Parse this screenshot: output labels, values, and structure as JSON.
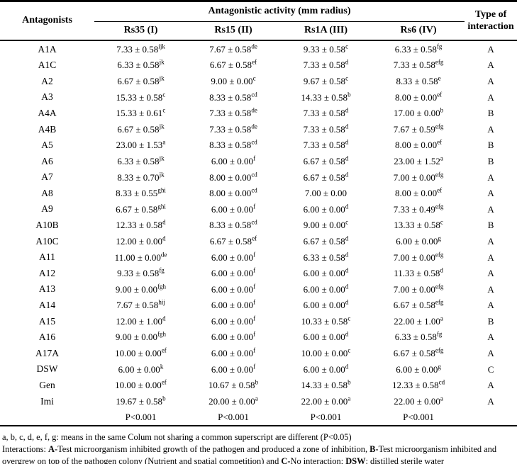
{
  "table": {
    "header": {
      "antagonists": "Antagonists",
      "group": "Antagonistic activity (mm radius)",
      "columns": [
        "Rs35 (I)",
        "Rs15 (II)",
        "Rs1A (III)",
        "Rs6 (IV)"
      ],
      "type": "Type of interaction"
    },
    "rows": [
      {
        "name": "A1A",
        "values": [
          {
            "v": "7.33 ± 0.58",
            "s": "ijk"
          },
          {
            "v": "7.67 ± 0.58",
            "s": "de"
          },
          {
            "v": "9.33 ± 0.58",
            "s": "c"
          },
          {
            "v": "6.33 ± 0.58",
            "s": "fg"
          }
        ],
        "type": "A"
      },
      {
        "name": "A1C",
        "values": [
          {
            "v": "6.33 ± 0.58",
            "s": "jk"
          },
          {
            "v": "6.67 ± 0.58",
            "s": "ef"
          },
          {
            "v": "7.33 ± 0.58",
            "s": "d"
          },
          {
            "v": "7.33 ± 0.58",
            "s": "efg"
          }
        ],
        "type": "A"
      },
      {
        "name": "A2",
        "values": [
          {
            "v": "6.67 ± 0.58",
            "s": "jk"
          },
          {
            "v": "9.00 ± 0.00",
            "s": "c"
          },
          {
            "v": "9.67 ± 0.58",
            "s": "c"
          },
          {
            "v": "8.33 ± 0.58",
            "s": "e"
          }
        ],
        "type": "A"
      },
      {
        "name": "A3",
        "values": [
          {
            "v": "15.33 ± 0.58",
            "s": "c"
          },
          {
            "v": "8.33 ± 0.58",
            "s": "cd"
          },
          {
            "v": "14.33 ± 0.58",
            "s": "b"
          },
          {
            "v": "8.00 ± 0.00",
            "s": "ef"
          }
        ],
        "type": "A"
      },
      {
        "name": "A4A",
        "values": [
          {
            "v": "15.33 ± 0.61",
            "s": "c"
          },
          {
            "v": "7.33 ± 0.58",
            "s": "de"
          },
          {
            "v": "7.33 ± 0.58",
            "s": "d"
          },
          {
            "v": "17.00 ± 0.00",
            "s": "b"
          }
        ],
        "type": "B"
      },
      {
        "name": "A4B",
        "values": [
          {
            "v": "6.67 ± 0.58",
            "s": "jk"
          },
          {
            "v": "7.33 ± 0.58",
            "s": "de"
          },
          {
            "v": "7.33 ± 0.58",
            "s": "d"
          },
          {
            "v": "7.67 ± 0.59",
            "s": "efg"
          }
        ],
        "type": "A"
      },
      {
        "name": "A5",
        "values": [
          {
            "v": "23.00 ± 1.53",
            "s": "a"
          },
          {
            "v": "8.33 ± 0.58",
            "s": "cd"
          },
          {
            "v": "7.33 ± 0.58",
            "s": "d"
          },
          {
            "v": "8.00 ± 0.00",
            "s": "ef"
          }
        ],
        "type": "B"
      },
      {
        "name": "A6",
        "values": [
          {
            "v": "6.33 ± 0.58",
            "s": "jk"
          },
          {
            "v": "6.00 ± 0.00",
            "s": "f"
          },
          {
            "v": "6.67 ± 0.58",
            "s": "d"
          },
          {
            "v": "23.00 ± 1.52",
            "s": "a"
          }
        ],
        "type": "B"
      },
      {
        "name": "A7",
        "values": [
          {
            "v": "8.33 ± 0.70",
            "s": "jk"
          },
          {
            "v": "8.00 ± 0.00",
            "s": "cd"
          },
          {
            "v": "6.67 ± 0.58",
            "s": "d"
          },
          {
            "v": "7.00 ± 0.00",
            "s": "efg"
          }
        ],
        "type": "A"
      },
      {
        "name": "A8",
        "values": [
          {
            "v": "8.33 ± 0.55",
            "s": "ghi"
          },
          {
            "v": "8.00 ± 0.00",
            "s": "cd"
          },
          {
            "v": "7.00 ± 0.00",
            "s": ""
          },
          {
            "v": "8.00 ± 0.00",
            "s": "ef"
          }
        ],
        "type": "A"
      },
      {
        "name": "A9",
        "values": [
          {
            "v": "6.67 ± 0.58",
            "s": "ghi"
          },
          {
            "v": "6.00 ± 0.00",
            "s": "f"
          },
          {
            "v": "6.00 ± 0.00",
            "s": "d"
          },
          {
            "v": "7.33 ± 0.49",
            "s": "efg"
          }
        ],
        "type": "A"
      },
      {
        "name": "A10B",
        "values": [
          {
            "v": "12.33 ± 0.58",
            "s": "d"
          },
          {
            "v": "8.33 ± 0.58",
            "s": "cd"
          },
          {
            "v": "9.00 ± 0.00",
            "s": "c"
          },
          {
            "v": "13.33 ± 0.58",
            "s": "c"
          }
        ],
        "type": "B"
      },
      {
        "name": "A10C",
        "values": [
          {
            "v": "12.00 ± 0.00",
            "s": "d"
          },
          {
            "v": "6.67 ± 0.58",
            "s": "ef"
          },
          {
            "v": "6.67 ± 0.58",
            "s": "d"
          },
          {
            "v": "6.00 ± 0.00",
            "s": "g"
          }
        ],
        "type": "A"
      },
      {
        "name": "A11",
        "values": [
          {
            "v": "11.00 ± 0.00",
            "s": "de"
          },
          {
            "v": "6.00 ± 0.00",
            "s": "f"
          },
          {
            "v": "6.33 ± 0.58",
            "s": "d"
          },
          {
            "v": "7.00 ± 0.00",
            "s": "efg"
          }
        ],
        "type": "A"
      },
      {
        "name": "A12",
        "values": [
          {
            "v": "9.33 ± 0.58",
            "s": "fg"
          },
          {
            "v": "6.00 ± 0.00",
            "s": "f"
          },
          {
            "v": "6.00 ± 0.00",
            "s": "d"
          },
          {
            "v": "11.33 ± 0.58",
            "s": "d"
          }
        ],
        "type": "A"
      },
      {
        "name": "A13",
        "values": [
          {
            "v": "9.00 ± 0.00",
            "s": "fgh"
          },
          {
            "v": "6.00 ± 0.00",
            "s": "f"
          },
          {
            "v": "6.00 ± 0.00",
            "s": "d"
          },
          {
            "v": "7.00 ± 0.00",
            "s": "efg"
          }
        ],
        "type": "A"
      },
      {
        "name": "A14",
        "values": [
          {
            "v": "7.67 ± 0.58",
            "s": "hij"
          },
          {
            "v": "6.00 ± 0.00",
            "s": "f"
          },
          {
            "v": "6.00 ± 0.00",
            "s": "d"
          },
          {
            "v": "6.67 ± 0.58",
            "s": "efg"
          }
        ],
        "type": "A"
      },
      {
        "name": "A15",
        "values": [
          {
            "v": "12.00 ± 1.00",
            "s": "d"
          },
          {
            "v": "6.00 ± 0.00",
            "s": "f"
          },
          {
            "v": "10.33 ± 0.58",
            "s": "c"
          },
          {
            "v": "22.00 ± 1.00",
            "s": "a"
          }
        ],
        "type": "B"
      },
      {
        "name": "A16",
        "values": [
          {
            "v": "9.00 ± 0.00",
            "s": "fgh"
          },
          {
            "v": "6.00 ± 0.00",
            "s": "f"
          },
          {
            "v": "6.00 ± 0.00",
            "s": "d"
          },
          {
            "v": "6.33 ± 0.58",
            "s": "fg"
          }
        ],
        "type": "A"
      },
      {
        "name": "A17A",
        "values": [
          {
            "v": "10.00 ± 0.00",
            "s": "ef"
          },
          {
            "v": "6.00 ± 0.00",
            "s": "f"
          },
          {
            "v": "10.00 ± 0.00",
            "s": "c"
          },
          {
            "v": "6.67 ± 0.58",
            "s": "efg"
          }
        ],
        "type": "A"
      },
      {
        "name": "DSW",
        "values": [
          {
            "v": "6.00 ± 0.00",
            "s": "k"
          },
          {
            "v": "6.00 ± 0.00",
            "s": "f"
          },
          {
            "v": "6.00 ± 0.00",
            "s": "d"
          },
          {
            "v": "6.00 ± 0.00",
            "s": "g"
          }
        ],
        "type": "C"
      },
      {
        "name": "Gen",
        "values": [
          {
            "v": "10.00 ± 0.00",
            "s": "ef"
          },
          {
            "v": "10.67 ± 0.58",
            "s": "b"
          },
          {
            "v": "14.33 ± 0.58",
            "s": "b"
          },
          {
            "v": "12.33 ± 0.58",
            "s": "cd"
          }
        ],
        "type": "A"
      },
      {
        "name": "Imi",
        "values": [
          {
            "v": "19.67 ± 0.58",
            "s": "b"
          },
          {
            "v": "20.00 ± 0.00",
            "s": "a"
          },
          {
            "v": "22.00 ± 0.00",
            "s": "a"
          },
          {
            "v": "22.00 ± 0.00",
            "s": "a"
          }
        ],
        "type": "A"
      },
      {
        "name": "",
        "values": [
          {
            "v": "P<0.001",
            "s": ""
          },
          {
            "v": "P<0.001",
            "s": ""
          },
          {
            "v": "P<0.001",
            "s": ""
          },
          {
            "v": "P<0.001",
            "s": ""
          }
        ],
        "type": ""
      }
    ]
  },
  "footnotes": {
    "line1": "a, b, c, d, e, f, g: means in the same Colum not sharing a common superscript are different (P<0.05)",
    "line2_segments": [
      {
        "t": "Interactions: ",
        "b": false
      },
      {
        "t": "A-",
        "b": true
      },
      {
        "t": "Test microorganism inhibited growth of the pathogen and produced a zone of inhibition, ",
        "b": false
      },
      {
        "t": "B-",
        "b": true
      },
      {
        "t": "Test microorganism inhibited and overgrew on top of the pathogen colony (Nutrient and spatial competition) and ",
        "b": false
      },
      {
        "t": "C-",
        "b": true
      },
      {
        "t": "No interaction; ",
        "b": false
      },
      {
        "t": "DSW",
        "b": true
      },
      {
        "t": ": distilled sterile water",
        "b": false
      }
    ]
  }
}
